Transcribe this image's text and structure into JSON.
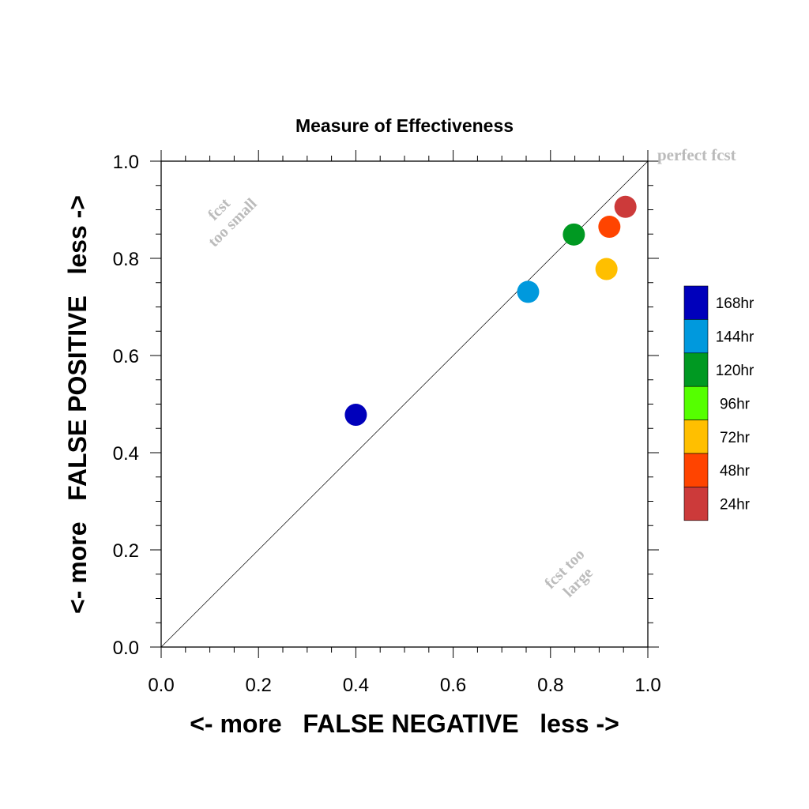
{
  "chart_data": {
    "type": "scatter",
    "title": "Measure of Effectiveness",
    "xlabel": "<- more   FALSE NEGATIVE   less ->",
    "ylabel": "<- more   FALSE POSITIVE   less ->",
    "xlim": [
      0.0,
      1.0
    ],
    "ylim": [
      0.0,
      1.0
    ],
    "x_ticks": [
      "0.0",
      "0.2",
      "0.4",
      "0.6",
      "0.8",
      "1.0"
    ],
    "y_ticks": [
      "0.0",
      "0.2",
      "0.4",
      "0.6",
      "0.8",
      "1.0"
    ],
    "grid": false,
    "reference_line": {
      "from": [
        0.0,
        0.0
      ],
      "to": [
        1.0,
        1.0
      ],
      "label": "perfect fcst"
    },
    "annotations": [
      {
        "lines": [
          "fcst",
          "too small"
        ],
        "x": 0.14,
        "y": 0.88,
        "rotation": -45
      },
      {
        "lines": [
          "fcst too",
          "large"
        ],
        "x": 0.85,
        "y": 0.14,
        "rotation": -45
      }
    ],
    "points": [
      {
        "x": 0.4,
        "y": 0.478,
        "color": "#0000bb"
      },
      {
        "x": 0.754,
        "y": 0.731,
        "color": "#0099dd"
      },
      {
        "x": 0.848,
        "y": 0.849,
        "color": "#009922"
      },
      {
        "x": 0.915,
        "y": 0.778,
        "color": "#ffbf00"
      },
      {
        "x": 0.921,
        "y": 0.865,
        "color": "#ff4400"
      },
      {
        "x": 0.954,
        "y": 0.906,
        "color": "#cc3a3a"
      }
    ],
    "legend": {
      "placement": "right",
      "entries": [
        {
          "label": "168hr",
          "color": "#0000bb"
        },
        {
          "label": "144hr",
          "color": "#0099dd"
        },
        {
          "label": "120hr",
          "color": "#009922"
        },
        {
          "label": "96hr",
          "color": "#55ff00"
        },
        {
          "label": "72hr",
          "color": "#ffbf00"
        },
        {
          "label": "48hr",
          "color": "#ff4400"
        },
        {
          "label": "24hr",
          "color": "#cc3a3a"
        }
      ]
    }
  }
}
